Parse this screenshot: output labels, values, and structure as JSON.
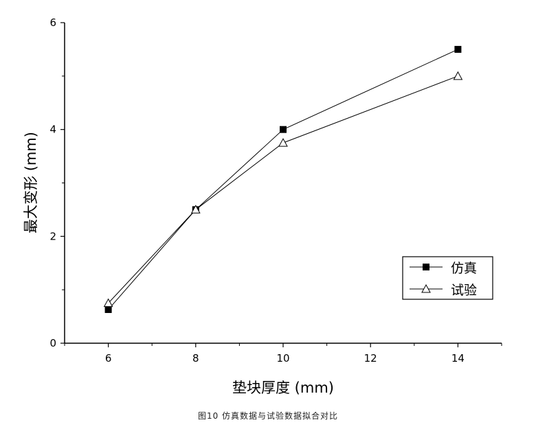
{
  "chart_data": {
    "type": "line",
    "xlabel": "垫块厚度 (mm)",
    "ylabel": "最大变形 (mm)",
    "xlim": [
      5,
      15
    ],
    "ylim": [
      0,
      6
    ],
    "xticks": [
      "6",
      "8",
      "10",
      "12",
      "14"
    ],
    "yticks": [
      "0",
      "2",
      "4",
      "6"
    ],
    "grid": false,
    "legend_position": "bottom-right",
    "series": [
      {
        "name": "仿真",
        "marker": "filled-square",
        "x": [
          6,
          8,
          10,
          14
        ],
        "y": [
          0.63,
          2.5,
          4.0,
          5.5
        ]
      },
      {
        "name": "试验",
        "marker": "open-triangle",
        "x": [
          6,
          8,
          10,
          14
        ],
        "y": [
          0.75,
          2.5,
          3.75,
          5.0
        ]
      }
    ]
  },
  "caption": "图10 仿真数据与试验数据拟合对比"
}
